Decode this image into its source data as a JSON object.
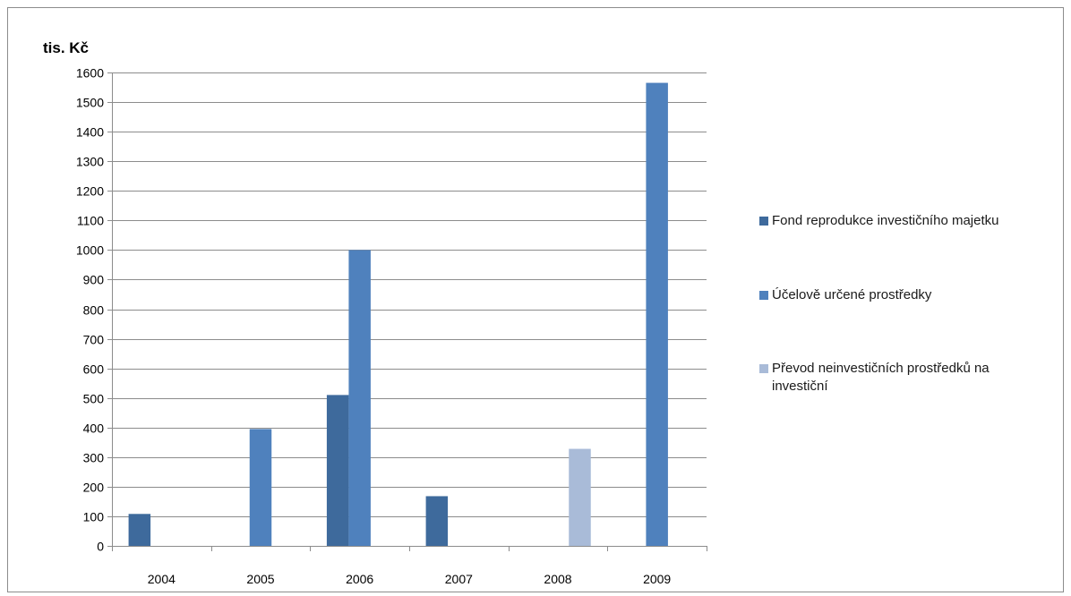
{
  "chart_data": {
    "type": "bar",
    "ylabel": "tis. Kč",
    "xlabel": "",
    "categories": [
      "2004",
      "2005",
      "2006",
      "2007",
      "2008",
      "2009"
    ],
    "ylim": [
      0,
      1600
    ],
    "ytick_step": 100,
    "grid": true,
    "legend_position": "right",
    "series": [
      {
        "name": "Fond reprodukce investičního majetku",
        "color": "#3e6a9c",
        "values": [
          108,
          0,
          510,
          168,
          0,
          0
        ]
      },
      {
        "name": "Účelově určené prostředky",
        "color": "#4f81bd",
        "values": [
          0,
          395,
          1000,
          0,
          0,
          1565
        ]
      },
      {
        "name": "Převod neinvestičních prostředků na investiční",
        "color": "#a9bbd8",
        "values": [
          0,
          0,
          0,
          0,
          328,
          0
        ]
      }
    ]
  }
}
